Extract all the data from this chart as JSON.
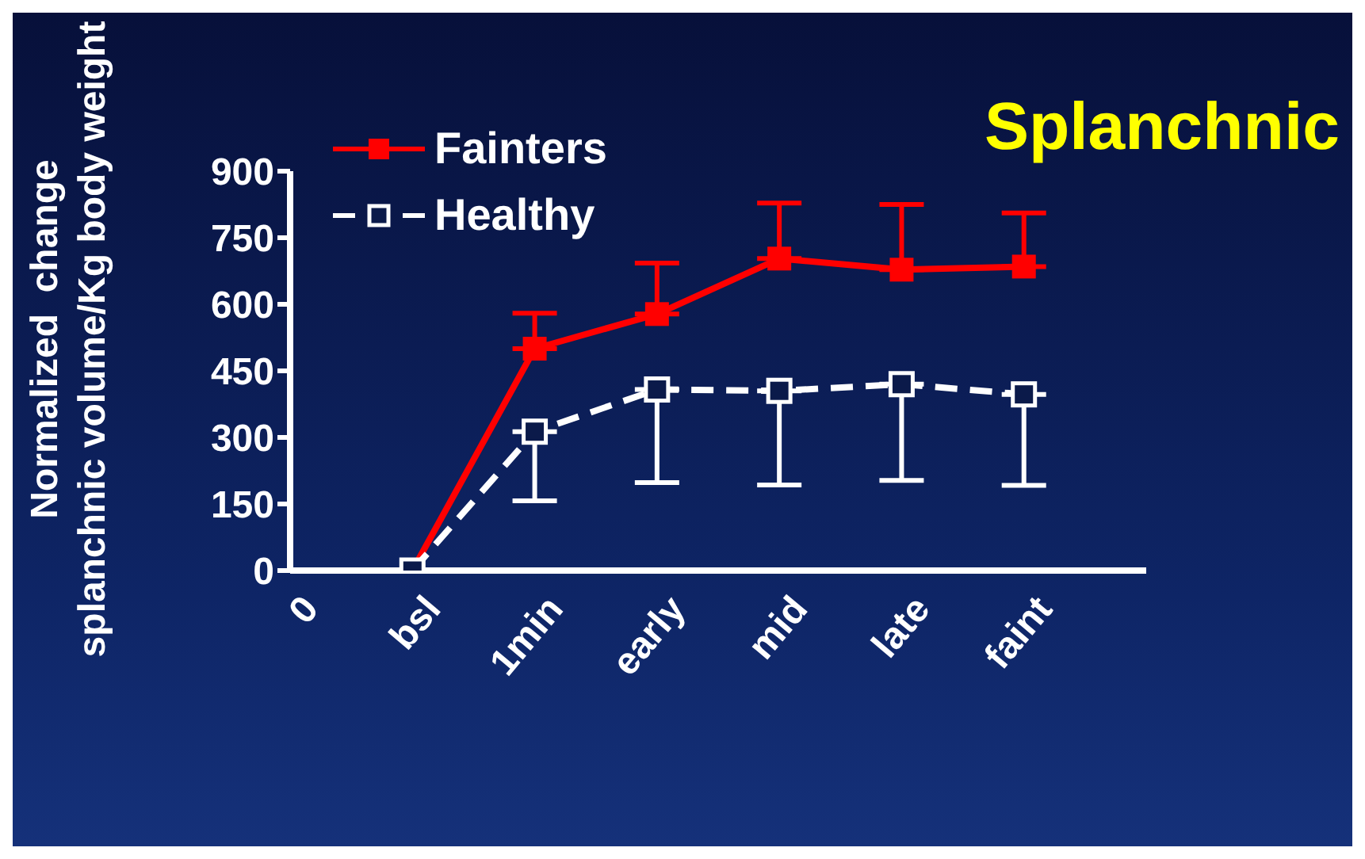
{
  "chart_data": {
    "type": "line",
    "title": "Splanchnic",
    "ylabel": "Normalized  change\nsplanchnic volume/Kg body weight",
    "categories": [
      "0",
      "bsl",
      "1min",
      "early",
      "mid",
      "late",
      "faint",
      null
    ],
    "series": [
      {
        "name": "Fainters",
        "color": "#ff0000",
        "line_style": "solid",
        "values": [
          null,
          0,
          500,
          578,
          703,
          678,
          685,
          null
        ],
        "errors": [
          null,
          null,
          [
            500,
            580
          ],
          [
            578,
            693
          ],
          [
            703,
            828
          ],
          [
            678,
            825
          ],
          [
            685,
            806
          ],
          null
        ]
      },
      {
        "name": "Healthy",
        "color": "#ffffff",
        "line_style": "dashed",
        "values": [
          null,
          0,
          313,
          408,
          405,
          420,
          397,
          null
        ],
        "errors": [
          null,
          null,
          [
            157,
            313
          ],
          [
            198,
            408
          ],
          [
            193,
            405
          ],
          [
            203,
            420
          ],
          [
            192,
            397
          ],
          null
        ]
      }
    ],
    "ylim": [
      0,
      900
    ],
    "yticks": [
      0,
      150,
      300,
      450,
      600,
      750,
      900
    ],
    "grid": false,
    "legend": "top left",
    "marker": "square"
  }
}
